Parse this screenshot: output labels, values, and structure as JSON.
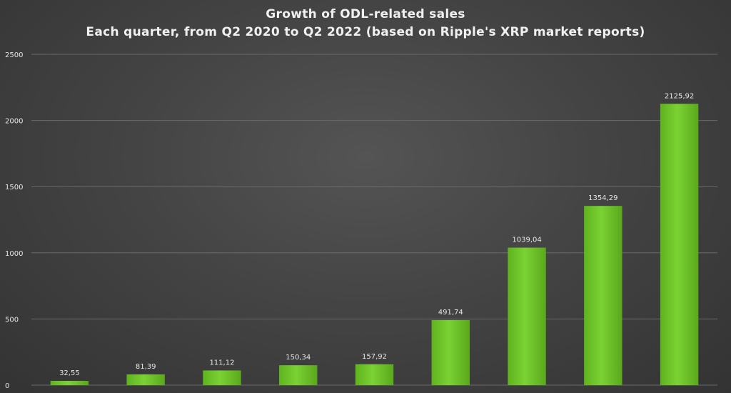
{
  "chart_data": {
    "type": "bar",
    "title": "Growth of ODL-related sales",
    "subtitle": "Each quarter, from Q2 2020 to Q2 2022 (based on Ripple's XRP market reports)",
    "xlabel": "",
    "ylabel": "",
    "categories": [
      "",
      "",
      "",
      "",
      "",
      "",
      "",
      "",
      ""
    ],
    "values": [
      32.55,
      81.39,
      111.12,
      150.34,
      157.92,
      491.74,
      1039.04,
      1354.29,
      2125.92
    ],
    "data_labels": [
      "32,55",
      "81,39",
      "111,12",
      "150,34",
      "157,92",
      "491,74",
      "1039,04",
      "1354,29",
      "2125,92"
    ],
    "ylim": [
      0,
      2500
    ],
    "yticks": [
      0,
      500,
      1000,
      1500,
      2000,
      2500
    ],
    "grid": true,
    "legend": "none",
    "bar_color": "#6fc62a"
  }
}
